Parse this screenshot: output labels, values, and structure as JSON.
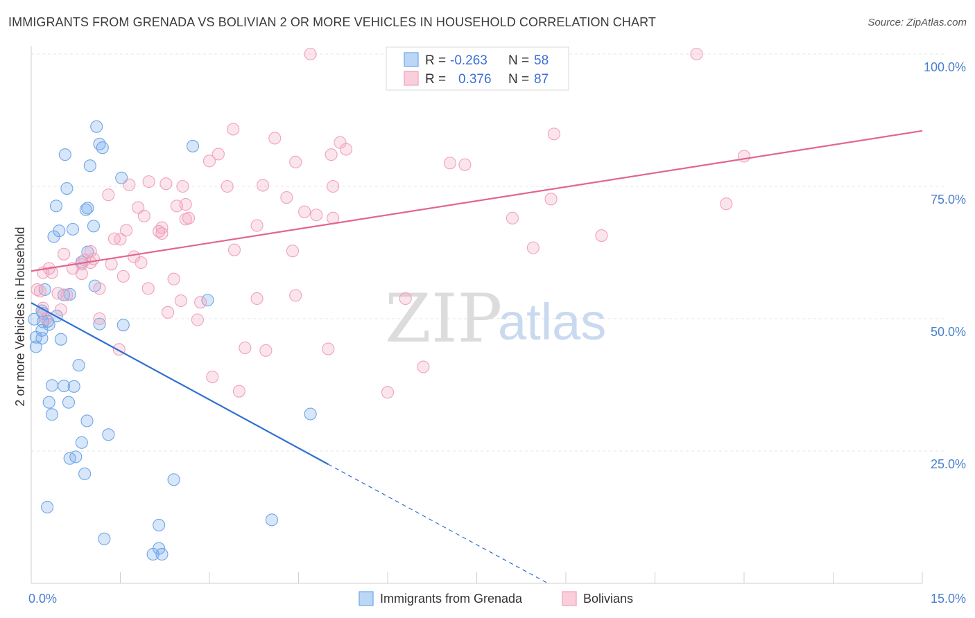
{
  "title": "IMMIGRANTS FROM GRENADA VS BOLIVIAN 2 OR MORE VEHICLES IN HOUSEHOLD CORRELATION CHART",
  "source": "Source: ZipAtlas.com",
  "watermark": {
    "zip": "ZIP",
    "atlas": "atlas"
  },
  "chart_data": {
    "type": "scatter",
    "title": "IMMIGRANTS FROM GRENADA VS BOLIVIAN 2 OR MORE VEHICLES IN HOUSEHOLD CORRELATION CHART",
    "xlabel": "",
    "ylabel": "2 or more Vehicles in Household",
    "xlim": [
      0,
      15
    ],
    "ylim": [
      0,
      100
    ],
    "x_tick_labels": [
      {
        "value": 0,
        "label": "0.0%"
      },
      {
        "value": 15,
        "label": "15.0%"
      }
    ],
    "y_tick_labels": [
      {
        "value": 25,
        "label": "25.0%"
      },
      {
        "value": 50,
        "label": "50.0%"
      },
      {
        "value": 75,
        "label": "75.0%"
      },
      {
        "value": 100,
        "label": "100.0%"
      }
    ],
    "grid": true,
    "legend_position": "top-center",
    "series": [
      {
        "name": "Immigrants from Grenada",
        "color": "#6ea6e8",
        "line_color": "#2f6fd0",
        "R": "-0.263",
        "N": "58",
        "trend": {
          "x0": 0,
          "y0": 53.0,
          "x1": 5.0,
          "y1": 22.5,
          "dash_to_x": 8.7,
          "dash_to_y": 0
        },
        "points": [
          [
            1.1,
            86.3
          ],
          [
            1.15,
            83.0
          ],
          [
            1.2,
            82.3
          ],
          [
            0.57,
            81.0
          ],
          [
            2.72,
            82.6
          ],
          [
            0.99,
            78.9
          ],
          [
            1.52,
            76.6
          ],
          [
            0.6,
            74.6
          ],
          [
            0.42,
            71.3
          ],
          [
            0.95,
            70.9
          ],
          [
            0.92,
            70.6
          ],
          [
            1.05,
            67.5
          ],
          [
            0.7,
            66.9
          ],
          [
            0.47,
            66.6
          ],
          [
            0.38,
            65.5
          ],
          [
            0.95,
            62.6
          ],
          [
            0.85,
            60.7
          ],
          [
            1.07,
            56.2
          ],
          [
            0.23,
            55.5
          ],
          [
            0.65,
            54.6
          ],
          [
            0.55,
            54.5
          ],
          [
            2.97,
            53.5
          ],
          [
            0.18,
            51.5
          ],
          [
            0.2,
            51.0
          ],
          [
            0.43,
            50.5
          ],
          [
            0.05,
            49.9
          ],
          [
            0.2,
            49.4
          ],
          [
            0.3,
            48.9
          ],
          [
            1.15,
            49.0
          ],
          [
            1.55,
            48.8
          ],
          [
            0.18,
            47.8
          ],
          [
            0.08,
            46.5
          ],
          [
            0.18,
            46.3
          ],
          [
            0.5,
            46.1
          ],
          [
            0.08,
            44.7
          ],
          [
            0.8,
            41.2
          ],
          [
            0.35,
            37.4
          ],
          [
            0.55,
            37.3
          ],
          [
            0.72,
            37.2
          ],
          [
            0.3,
            34.2
          ],
          [
            0.63,
            34.2
          ],
          [
            0.35,
            31.9
          ],
          [
            4.7,
            32.0
          ],
          [
            0.94,
            30.7
          ],
          [
            1.3,
            28.1
          ],
          [
            0.85,
            26.6
          ],
          [
            0.75,
            23.9
          ],
          [
            0.65,
            23.6
          ],
          [
            0.9,
            20.7
          ],
          [
            2.4,
            19.6
          ],
          [
            0.27,
            14.4
          ],
          [
            4.05,
            12.0
          ],
          [
            2.15,
            11.0
          ],
          [
            1.23,
            8.4
          ],
          [
            2.15,
            6.6
          ],
          [
            2.05,
            5.5
          ],
          [
            2.2,
            5.5
          ],
          [
            0.28,
            49.5
          ]
        ]
      },
      {
        "name": "Bolivians",
        "color": "#f2a0ba",
        "line_color": "#e0668f",
        "R": "0.376",
        "N": "87",
        "trend": {
          "x0": 0,
          "y0": 59.0,
          "x1": 15,
          "y1": 85.5
        },
        "points": [
          [
            4.7,
            100.0
          ],
          [
            11.2,
            100.0
          ],
          [
            3.4,
            85.8
          ],
          [
            8.8,
            84.9
          ],
          [
            4.1,
            84.1
          ],
          [
            5.2,
            83.3
          ],
          [
            5.3,
            82.0
          ],
          [
            5.05,
            81.0
          ],
          [
            3.15,
            81.1
          ],
          [
            3.0,
            79.8
          ],
          [
            4.45,
            79.6
          ],
          [
            7.05,
            79.4
          ],
          [
            7.3,
            79.1
          ],
          [
            12.0,
            80.7
          ],
          [
            1.98,
            75.9
          ],
          [
            2.27,
            75.5
          ],
          [
            1.65,
            75.3
          ],
          [
            2.55,
            75.0
          ],
          [
            3.3,
            75.0
          ],
          [
            3.9,
            75.2
          ],
          [
            5.08,
            75.0
          ],
          [
            1.3,
            73.4
          ],
          [
            4.3,
            72.9
          ],
          [
            8.75,
            72.6
          ],
          [
            2.6,
            71.6
          ],
          [
            2.45,
            71.3
          ],
          [
            1.8,
            71.0
          ],
          [
            11.7,
            71.7
          ],
          [
            4.6,
            70.2
          ],
          [
            4.8,
            69.6
          ],
          [
            5.08,
            69.0
          ],
          [
            1.9,
            69.4
          ],
          [
            2.65,
            69.0
          ],
          [
            2.6,
            68.8
          ],
          [
            8.1,
            69.0
          ],
          [
            2.2,
            67.2
          ],
          [
            3.8,
            67.6
          ],
          [
            2.15,
            66.5
          ],
          [
            1.6,
            66.7
          ],
          [
            2.2,
            66.1
          ],
          [
            1.4,
            65.1
          ],
          [
            1.5,
            65.0
          ],
          [
            9.6,
            65.7
          ],
          [
            8.45,
            63.4
          ],
          [
            3.42,
            63.0
          ],
          [
            4.4,
            62.8
          ],
          [
            1.0,
            62.7
          ],
          [
            0.55,
            62.2
          ],
          [
            1.73,
            61.7
          ],
          [
            1.05,
            61.3
          ],
          [
            0.9,
            61.1
          ],
          [
            1.0,
            60.6
          ],
          [
            0.85,
            60.3
          ],
          [
            1.35,
            60.3
          ],
          [
            1.85,
            60.6
          ],
          [
            0.3,
            59.5
          ],
          [
            0.7,
            59.5
          ],
          [
            0.2,
            58.7
          ],
          [
            0.35,
            58.7
          ],
          [
            0.85,
            58.5
          ],
          [
            1.55,
            58.0
          ],
          [
            2.4,
            57.5
          ],
          [
            1.15,
            55.7
          ],
          [
            1.97,
            55.7
          ],
          [
            0.45,
            54.8
          ],
          [
            0.15,
            55.2
          ],
          [
            0.6,
            54.5
          ],
          [
            4.45,
            54.4
          ],
          [
            3.8,
            53.8
          ],
          [
            6.3,
            53.8
          ],
          [
            2.52,
            53.4
          ],
          [
            2.85,
            53.1
          ],
          [
            0.5,
            51.7
          ],
          [
            2.3,
            51.2
          ],
          [
            1.15,
            50.0
          ],
          [
            2.8,
            49.8
          ],
          [
            3.6,
            44.5
          ],
          [
            3.95,
            44.0
          ],
          [
            1.48,
            44.2
          ],
          [
            5.0,
            44.3
          ],
          [
            6.6,
            40.9
          ],
          [
            3.05,
            39.0
          ],
          [
            3.5,
            36.3
          ],
          [
            6.0,
            36.1
          ],
          [
            0.1,
            55.5
          ],
          [
            0.2,
            52.0
          ],
          [
            0.25,
            50.0
          ]
        ]
      }
    ]
  }
}
